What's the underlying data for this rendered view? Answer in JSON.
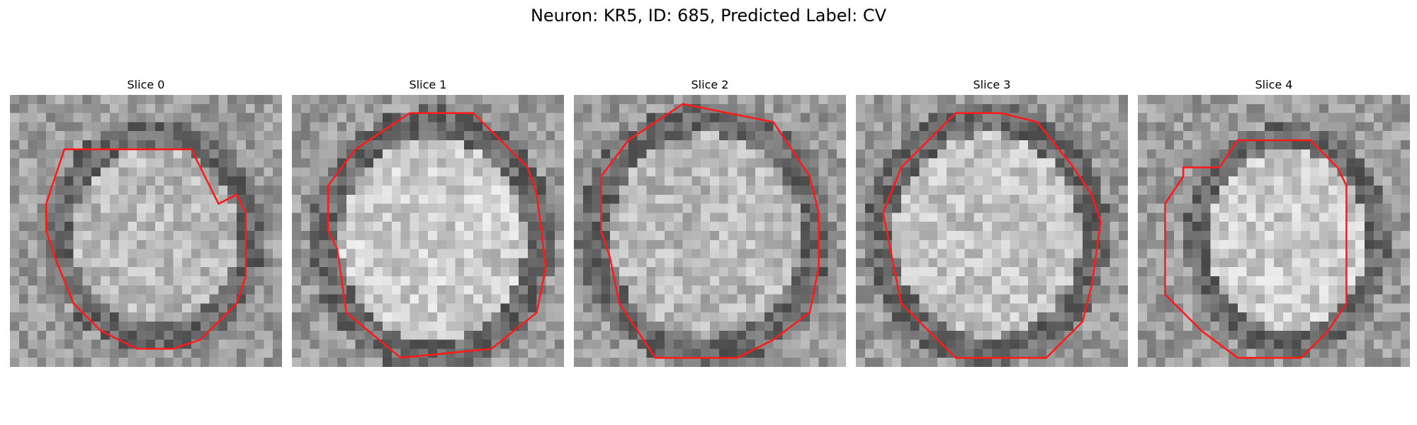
{
  "title": "Neuron: KR5, ID: 685, Predicted Label: CV",
  "panels": [
    {
      "title": "Slice 0"
    },
    {
      "title": "Slice 1"
    },
    {
      "title": "Slice 2"
    },
    {
      "title": "Slice 3"
    },
    {
      "title": "Slice 4"
    }
  ],
  "colors": {
    "contour": "#ff1a1a",
    "background": "#ffffff"
  }
}
